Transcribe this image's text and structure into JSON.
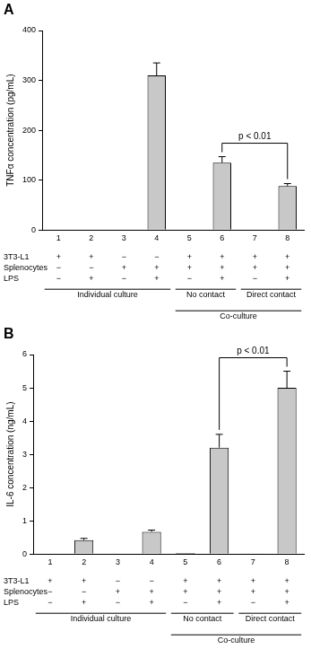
{
  "chart_data": [
    {
      "type": "bar",
      "panel": "A",
      "y_label": "TNFα concentration (pg/mL)",
      "categories": [
        "1",
        "2",
        "3",
        "4",
        "5",
        "6",
        "7",
        "8"
      ],
      "values": [
        0,
        0,
        0,
        310,
        0,
        135,
        0,
        88
      ],
      "errors": [
        0,
        0,
        0,
        25,
        0,
        12,
        0,
        5
      ],
      "color": "#c8c8c8",
      "ylim": [
        0,
        400
      ],
      "yticks": [
        0,
        100,
        200,
        300,
        400
      ],
      "grid": false,
      "conditions": [
        {
          "name": "3T3-L1",
          "values": [
            "+",
            "+",
            "−",
            "−",
            "+",
            "+",
            "+",
            "+"
          ]
        },
        {
          "name": "Splenocytes",
          "values": [
            "−",
            "−",
            "+",
            "+",
            "+",
            "+",
            "+",
            "+"
          ]
        },
        {
          "name": "LPS",
          "values": [
            "−",
            "+",
            "−",
            "+",
            "−",
            "+",
            "−",
            "+"
          ]
        }
      ],
      "groups": [
        {
          "label": "Individual culture",
          "categories": [
            "1",
            "2",
            "3",
            "4"
          ]
        },
        {
          "label": "No contact",
          "categories": [
            "5",
            "6"
          ]
        },
        {
          "label": "Direct contact",
          "categories": [
            "7",
            "8"
          ]
        }
      ],
      "outer_groups": [
        {
          "label": "Co-culture",
          "categories": [
            "5",
            "6",
            "7",
            "8"
          ]
        }
      ],
      "annotation": {
        "text": "p < 0.01",
        "categories": [
          "6",
          "8"
        ]
      }
    },
    {
      "type": "bar",
      "panel": "B",
      "y_label": "IL-6 concentration (ng/mL)",
      "categories": [
        "1",
        "2",
        "3",
        "4",
        "5",
        "6",
        "7",
        "8"
      ],
      "values": [
        0,
        0.42,
        0,
        0.67,
        0.03,
        3.2,
        0.02,
        5.0
      ],
      "errors": [
        0,
        0.05,
        0,
        0.05,
        0,
        0.4,
        0,
        0.5
      ],
      "color": "#c8c8c8",
      "ylim": [
        0,
        6
      ],
      "yticks": [
        0,
        1,
        2,
        3,
        4,
        5,
        6
      ],
      "grid": false,
      "conditions": [
        {
          "name": "3T3-L1",
          "values": [
            "+",
            "+",
            "−",
            "−",
            "+",
            "+",
            "+",
            "+"
          ]
        },
        {
          "name": "Splenocytes",
          "values": [
            "−",
            "−",
            "+",
            "+",
            "+",
            "+",
            "+",
            "+"
          ]
        },
        {
          "name": "LPS",
          "values": [
            "−",
            "+",
            "−",
            "+",
            "−",
            "+",
            "−",
            "+"
          ]
        }
      ],
      "groups": [
        {
          "label": "Individual culture",
          "categories": [
            "1",
            "2",
            "3",
            "4"
          ]
        },
        {
          "label": "No contact",
          "categories": [
            "5",
            "6"
          ]
        },
        {
          "label": "Direct contact",
          "categories": [
            "7",
            "8"
          ]
        }
      ],
      "outer_groups": [
        {
          "label": "Co-culture",
          "categories": [
            "5",
            "6",
            "7",
            "8"
          ]
        }
      ],
      "annotation": {
        "text": "p < 0.01",
        "categories": [
          "6",
          "8"
        ]
      }
    }
  ]
}
